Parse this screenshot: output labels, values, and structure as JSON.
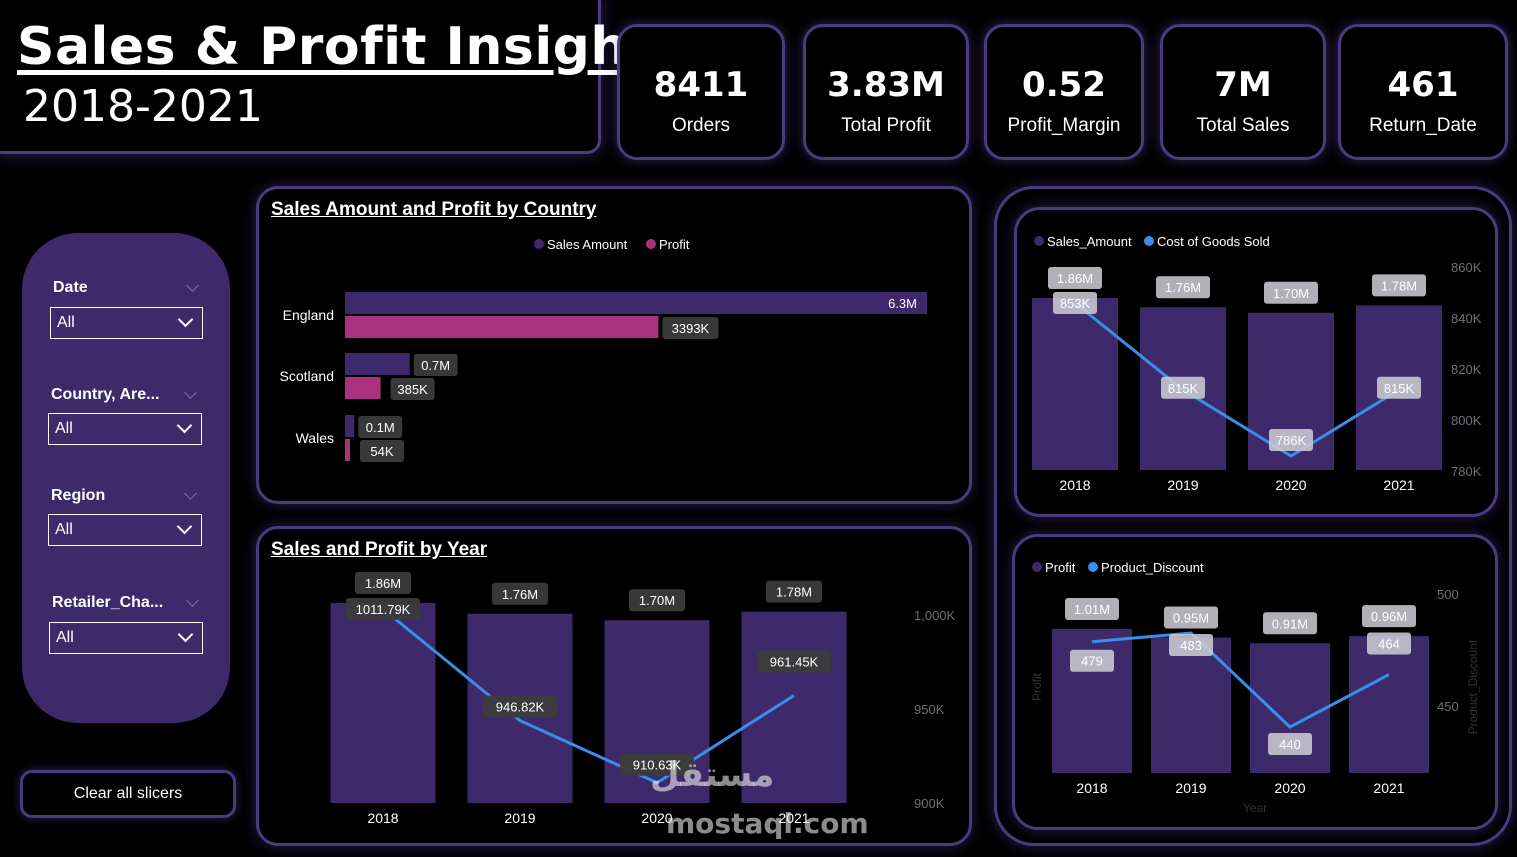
{
  "header": {
    "title": "Sales & Profit Insights",
    "subtitle": "2018-2021"
  },
  "kpis": [
    {
      "value": "8411",
      "label": "Orders"
    },
    {
      "value": "3.83M",
      "label": "Total Profit"
    },
    {
      "value": "0.52",
      "label": "Profit_Margin"
    },
    {
      "value": "7M",
      "label": "Total Sales"
    },
    {
      "value": "461",
      "label": "Return_Date"
    }
  ],
  "slicers": [
    {
      "label": "Date",
      "value": "All"
    },
    {
      "label": "Country, Are...",
      "value": "All"
    },
    {
      "label": "Region",
      "value": "All"
    },
    {
      "label": "Retailer_Cha...",
      "value": "All"
    }
  ],
  "clear_button": "Clear all slicers",
  "watermark": {
    "ar": "مستقل",
    "en": "mostaql.com"
  },
  "colors": {
    "purple": "#3e2a6b",
    "magenta": "#a8327d",
    "line": "#3a8ee8",
    "border": "#4b3a7e"
  },
  "chart_data": [
    {
      "type": "bar",
      "orientation": "horizontal",
      "title": "Sales Amount and Profit by Country",
      "legend": [
        "Sales Amount",
        "Profit"
      ],
      "categories": [
        "England",
        "Scotland",
        "Wales"
      ],
      "series": [
        {
          "name": "Sales Amount",
          "values": [
            6.3,
            0.7,
            0.1
          ],
          "labels": [
            "6.3M",
            "0.7M",
            "0.1M"
          ]
        },
        {
          "name": "Profit",
          "values": [
            3.393,
            0.385,
            0.054
          ],
          "labels": [
            "3393K",
            "385K",
            "54K"
          ]
        }
      ]
    },
    {
      "type": "bar",
      "title": "Sales and Profit by Year",
      "categories": [
        "2018",
        "2019",
        "2020",
        "2021"
      ],
      "bars": {
        "values": [
          1.86,
          1.76,
          1.7,
          1.78
        ],
        "labels": [
          "1.86M",
          "1.76M",
          "1.70M",
          "1.78M"
        ]
      },
      "line": {
        "values": [
          1011.79,
          946.82,
          910.63,
          961.45
        ],
        "labels": [
          "1011.79K",
          "946.82K",
          "910.63K",
          "961.45K"
        ]
      },
      "y2_ticks": [
        "1,000K",
        "950K",
        "900K"
      ]
    },
    {
      "type": "bar",
      "legend": [
        "Sales_Amount",
        "Cost of Goods Sold"
      ],
      "categories": [
        "2018",
        "2019",
        "2020",
        "2021"
      ],
      "bars": {
        "name": "Sales_Amount",
        "values": [
          1.86,
          1.76,
          1.7,
          1.78
        ],
        "labels": [
          "1.86M",
          "1.76M",
          "1.70M",
          "1.78M"
        ]
      },
      "line": {
        "name": "Cost of Goods Sold",
        "values": [
          853,
          815,
          786,
          815
        ],
        "labels": [
          "853K",
          "815K",
          "786K",
          "815K"
        ]
      },
      "y2_ticks": [
        "860K",
        "840K",
        "820K",
        "800K",
        "780K"
      ]
    },
    {
      "type": "bar",
      "legend": [
        "Profit",
        "Product_Discount"
      ],
      "categories": [
        "2018",
        "2019",
        "2020",
        "2021"
      ],
      "bars": {
        "name": "Profit",
        "values": [
          1.01,
          0.95,
          0.91,
          0.96
        ],
        "labels": [
          "1.01M",
          "0.95M",
          "0.91M",
          "0.96M"
        ]
      },
      "line": {
        "name": "Product_Discount",
        "values": [
          479,
          483,
          440,
          464
        ],
        "labels": [
          "479",
          "483",
          "440",
          "464"
        ]
      },
      "y2_ticks": [
        "500",
        "450"
      ],
      "ylabel": "Profit",
      "y2label": "Product_Discount",
      "xlabel": "Year"
    }
  ]
}
